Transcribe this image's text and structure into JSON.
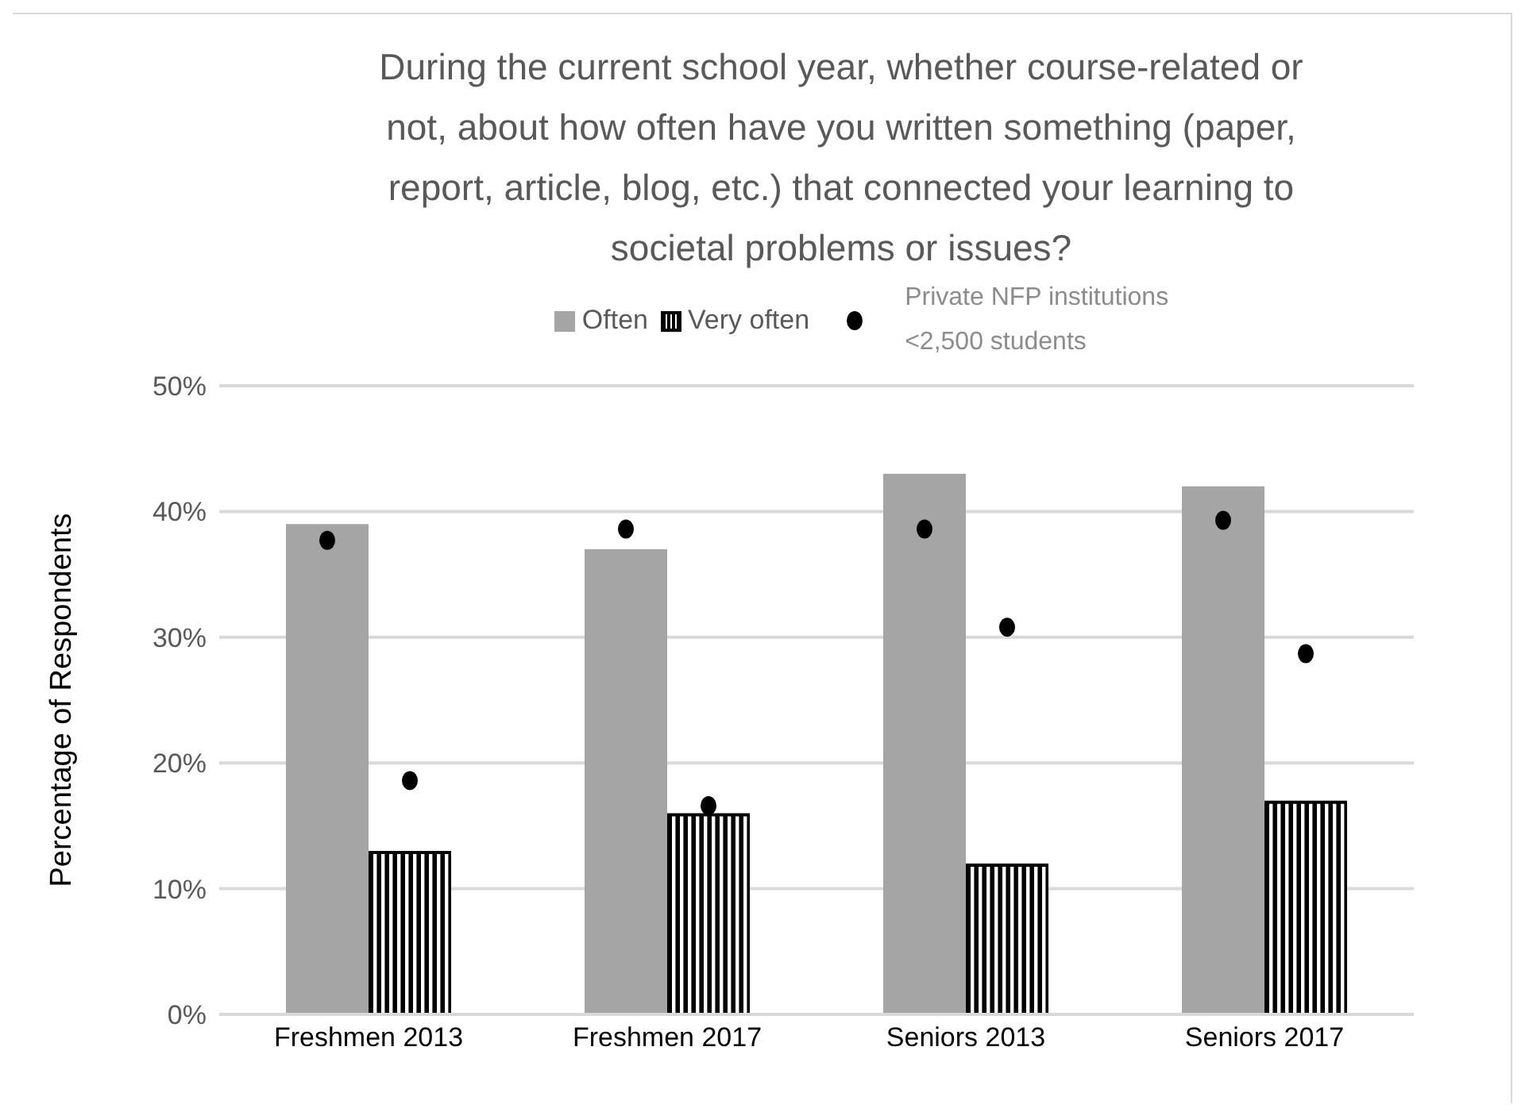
{
  "chart_data": {
    "type": "bar",
    "title": "During the current school year, whether course-related or not, about how often have you written something (paper, report, article, blog, etc.) that connected your learning to societal problems or issues?",
    "ylabel": "Percentage of Respondents",
    "categories": [
      "Freshmen 2013",
      "Freshmen 2017",
      "Seniors 2013",
      "Seniors 2017"
    ],
    "series": [
      {
        "name": "Often",
        "color": "#a5a5a5",
        "values": [
          39,
          37,
          43,
          42
        ]
      },
      {
        "name": "Very often",
        "color": "#000000",
        "values": [
          13,
          16,
          12,
          17
        ]
      },
      {
        "name": "Private NFP institutions <2,500 students",
        "type": "scatter",
        "color": "#000000",
        "values": [
          37.7,
          38.6,
          38.6,
          39.3
        ]
      },
      {
        "type": "scatter",
        "color": "#000000",
        "values": [
          18.6,
          16.6,
          30.8,
          28.7
        ]
      }
    ],
    "ylim": [
      0,
      50
    ],
    "yticks": [
      {
        "value": 0,
        "label": "0%"
      },
      {
        "value": 10,
        "label": "10%"
      },
      {
        "value": 20,
        "label": "20%"
      },
      {
        "value": 30,
        "label": "30%"
      },
      {
        "value": 40,
        "label": "40%"
      },
      {
        "value": 50,
        "label": "50%"
      }
    ],
    "grid": "y",
    "legend": "top",
    "marker": "circle"
  }
}
